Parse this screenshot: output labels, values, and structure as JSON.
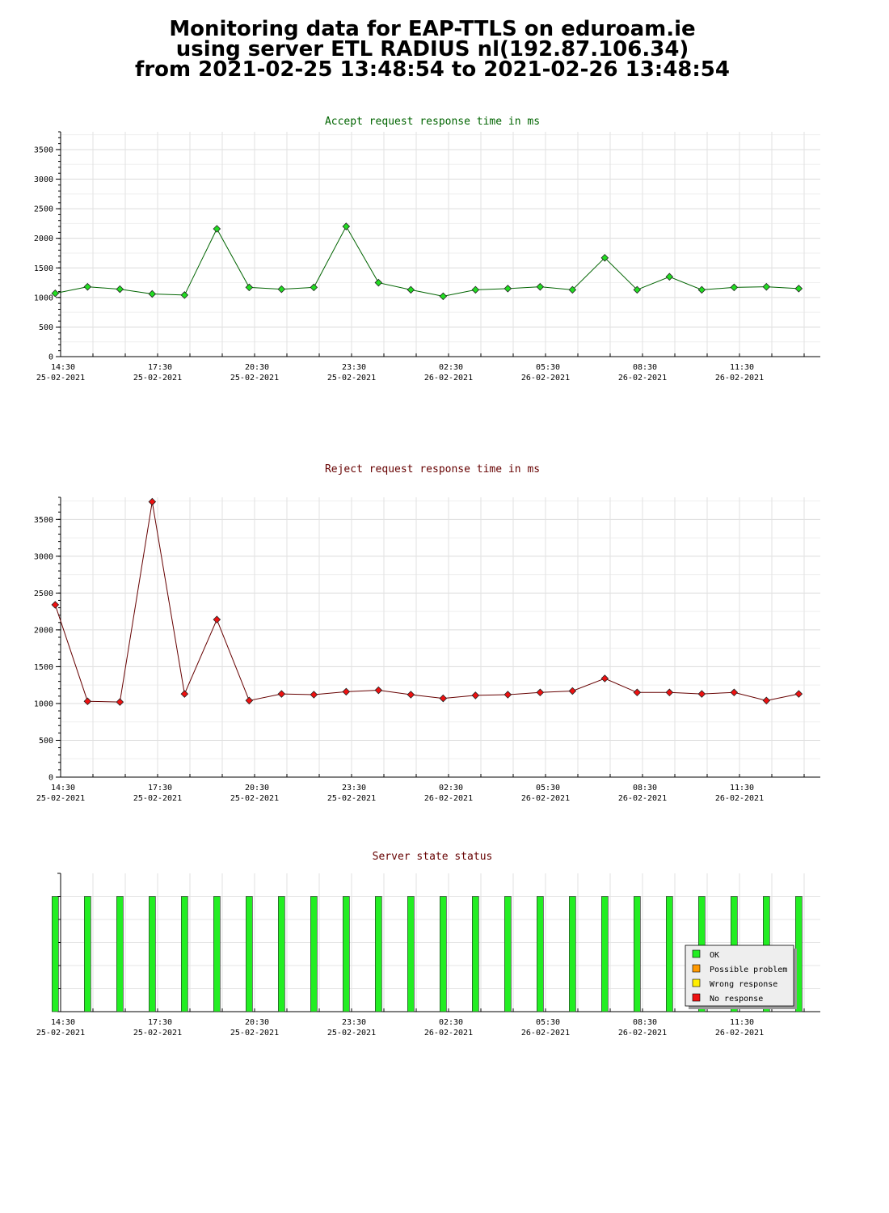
{
  "page_title": {
    "line1": "Monitoring data for EAP-TTLS on eduroam.ie",
    "line2": "using server ETL RADIUS nl(192.87.106.34)",
    "line3": "from 2021-02-25 13:48:54 to 2021-02-26 13:48:54"
  },
  "x_axis": {
    "ticks": [
      {
        "time": "14:30",
        "date": "25-02-2021"
      },
      {
        "time": "17:30",
        "date": "25-02-2021"
      },
      {
        "time": "20:30",
        "date": "25-02-2021"
      },
      {
        "time": "23:30",
        "date": "25-02-2021"
      },
      {
        "time": "02:30",
        "date": "26-02-2021"
      },
      {
        "time": "05:30",
        "date": "26-02-2021"
      },
      {
        "time": "08:30",
        "date": "26-02-2021"
      },
      {
        "time": "11:30",
        "date": "26-02-2021"
      }
    ]
  },
  "chart_data": [
    {
      "type": "line",
      "title": "Accept request response time in ms",
      "title_color": "#006400",
      "line_color": "#006400",
      "marker_color": "#22dd22",
      "grid": true,
      "ylim": [
        0,
        3800
      ],
      "yticks": [
        0,
        500,
        1000,
        1500,
        2000,
        2500,
        3000,
        3500
      ],
      "x": [
        "14:20",
        "15:20",
        "16:20",
        "17:20",
        "18:20",
        "19:20",
        "20:20",
        "21:20",
        "22:20",
        "23:20",
        "00:20",
        "01:20",
        "02:20",
        "03:20",
        "04:20",
        "05:20",
        "06:20",
        "07:20",
        "08:20",
        "09:20",
        "10:20",
        "11:20",
        "12:20",
        "13:20"
      ],
      "series": [
        {
          "values": [
            1070,
            1180,
            1140,
            1060,
            1040,
            2160,
            1170,
            1140,
            1170,
            2200,
            1250,
            1130,
            1020,
            1130,
            1150,
            1180,
            1130,
            1670,
            1130,
            1350,
            1130,
            1170,
            1180,
            1150
          ]
        }
      ]
    },
    {
      "type": "line",
      "title": "Reject request response time in ms",
      "title_color": "#660000",
      "line_color": "#660000",
      "marker_color": "#ee1111",
      "grid": true,
      "ylim": [
        0,
        3800
      ],
      "yticks": [
        0,
        500,
        1000,
        1500,
        2000,
        2500,
        3000,
        3500
      ],
      "x": [
        "14:20",
        "15:20",
        "16:20",
        "17:20",
        "18:20",
        "19:20",
        "20:20",
        "21:20",
        "22:20",
        "23:20",
        "00:20",
        "01:20",
        "02:20",
        "03:20",
        "04:20",
        "05:20",
        "06:20",
        "07:20",
        "08:20",
        "09:20",
        "10:20",
        "11:20",
        "12:20",
        "13:20"
      ],
      "series": [
        {
          "values": [
            2340,
            1030,
            1020,
            3740,
            1130,
            2140,
            1040,
            1130,
            1120,
            1160,
            1180,
            1120,
            1070,
            1110,
            1120,
            1150,
            1170,
            1340,
            1150,
            1150,
            1130,
            1150,
            1040,
            1130
          ]
        }
      ]
    },
    {
      "type": "bar",
      "title": "Server state status",
      "title_color": "#660000",
      "bar_color": "#22ee22",
      "grid": true,
      "x": [
        "14:20",
        "15:20",
        "16:20",
        "17:20",
        "18:20",
        "19:20",
        "20:20",
        "21:20",
        "22:20",
        "23:20",
        "00:20",
        "01:20",
        "02:20",
        "03:20",
        "04:20",
        "05:20",
        "06:20",
        "07:20",
        "08:20",
        "09:20",
        "10:20",
        "11:20",
        "12:20",
        "13:20"
      ],
      "values": [
        1,
        1,
        1,
        1,
        1,
        1,
        1,
        1,
        1,
        1,
        1,
        1,
        1,
        1,
        1,
        1,
        1,
        1,
        1,
        1,
        1,
        1,
        1,
        1
      ],
      "legend_position": "bottom-right",
      "legend": [
        {
          "label": "OK",
          "color": "#22ee22"
        },
        {
          "label": "Possible problem",
          "color": "#ff9900"
        },
        {
          "label": "Wrong response",
          "color": "#ffee00"
        },
        {
          "label": "No response",
          "color": "#ee1111"
        }
      ]
    }
  ]
}
